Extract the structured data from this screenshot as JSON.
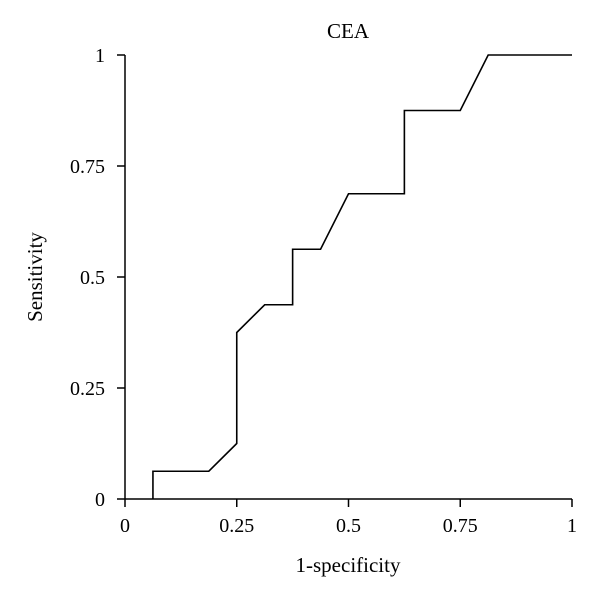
{
  "chart_data": {
    "type": "line",
    "title": "CEA",
    "xlabel": "1-specificity",
    "ylabel": "Sensitivity",
    "xlim": [
      0,
      1
    ],
    "ylim": [
      0,
      1
    ],
    "x_ticks": [
      0,
      0.25,
      0.5,
      0.75,
      1
    ],
    "y_ticks": [
      0,
      0.25,
      0.5,
      0.75,
      1
    ],
    "x_tick_labels": [
      "0",
      "0.25",
      "0.5",
      "0.75",
      "1"
    ],
    "y_tick_labels": [
      "0",
      "0.25",
      "0.5",
      "0.75",
      "1"
    ],
    "grid": false,
    "line_color": "#000000",
    "series": [
      {
        "points": [
          [
            0.0625,
            0.0
          ],
          [
            0.0625,
            0.0625
          ],
          [
            0.1875,
            0.0625
          ],
          [
            0.25,
            0.125
          ],
          [
            0.25,
            0.375
          ],
          [
            0.3125,
            0.4375
          ],
          [
            0.375,
            0.4375
          ],
          [
            0.375,
            0.5625
          ],
          [
            0.4375,
            0.5625
          ],
          [
            0.5,
            0.6875
          ],
          [
            0.625,
            0.6875
          ],
          [
            0.625,
            0.875
          ],
          [
            0.75,
            0.875
          ],
          [
            0.8125,
            1.0
          ],
          [
            1.0,
            1.0
          ]
        ]
      }
    ]
  }
}
